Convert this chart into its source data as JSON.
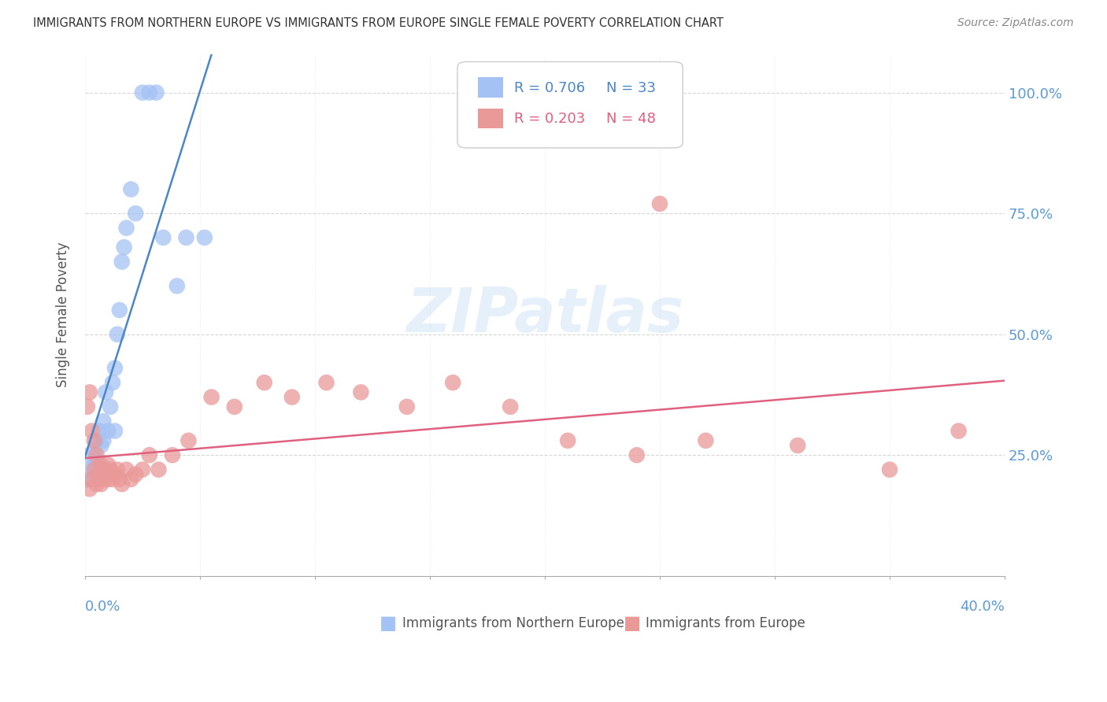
{
  "title": "IMMIGRANTS FROM NORTHERN EUROPE VS IMMIGRANTS FROM EUROPE SINGLE FEMALE POVERTY CORRELATION CHART",
  "source": "Source: ZipAtlas.com",
  "ylabel": "Single Female Poverty",
  "legend_blue_r": "R = 0.706",
  "legend_blue_n": "N = 33",
  "legend_pink_r": "R = 0.203",
  "legend_pink_n": "N = 48",
  "blue_color": "#a4c2f4",
  "pink_color": "#ea9999",
  "blue_line_color": "#4a86c8",
  "pink_line_color": "#e06080",
  "title_color": "#333333",
  "axis_label_color": "#5b9bd5",
  "grid_color": "#cccccc",
  "blue_x": [
    0.001,
    0.002,
    0.002,
    0.003,
    0.004,
    0.004,
    0.005,
    0.005,
    0.006,
    0.006,
    0.007,
    0.008,
    0.008,
    0.009,
    0.01,
    0.011,
    0.012,
    0.013,
    0.013,
    0.014,
    0.015,
    0.016,
    0.017,
    0.018,
    0.02,
    0.022,
    0.025,
    0.028,
    0.031,
    0.034,
    0.04,
    0.044,
    0.052
  ],
  "blue_y": [
    0.2,
    0.22,
    0.25,
    0.2,
    0.23,
    0.26,
    0.24,
    0.28,
    0.22,
    0.3,
    0.27,
    0.32,
    0.28,
    0.38,
    0.3,
    0.35,
    0.4,
    0.43,
    0.3,
    0.5,
    0.55,
    0.65,
    0.68,
    0.72,
    0.8,
    0.75,
    1.0,
    1.0,
    1.0,
    0.7,
    0.6,
    0.7,
    0.7
  ],
  "pink_x": [
    0.001,
    0.002,
    0.002,
    0.003,
    0.003,
    0.004,
    0.004,
    0.005,
    0.005,
    0.006,
    0.006,
    0.007,
    0.007,
    0.008,
    0.008,
    0.009,
    0.01,
    0.01,
    0.011,
    0.012,
    0.013,
    0.014,
    0.015,
    0.016,
    0.018,
    0.02,
    0.022,
    0.025,
    0.028,
    0.032,
    0.038,
    0.045,
    0.055,
    0.065,
    0.078,
    0.09,
    0.105,
    0.12,
    0.14,
    0.16,
    0.185,
    0.21,
    0.24,
    0.25,
    0.27,
    0.31,
    0.35,
    0.38
  ],
  "pink_y": [
    0.35,
    0.38,
    0.18,
    0.2,
    0.3,
    0.22,
    0.28,
    0.19,
    0.25,
    0.2,
    0.21,
    0.23,
    0.19,
    0.2,
    0.22,
    0.21,
    0.2,
    0.23,
    0.22,
    0.2,
    0.21,
    0.22,
    0.2,
    0.19,
    0.22,
    0.2,
    0.21,
    0.22,
    0.25,
    0.22,
    0.25,
    0.28,
    0.37,
    0.35,
    0.4,
    0.37,
    0.4,
    0.38,
    0.35,
    0.4,
    0.35,
    0.28,
    0.25,
    0.77,
    0.28,
    0.27,
    0.22,
    0.3
  ]
}
